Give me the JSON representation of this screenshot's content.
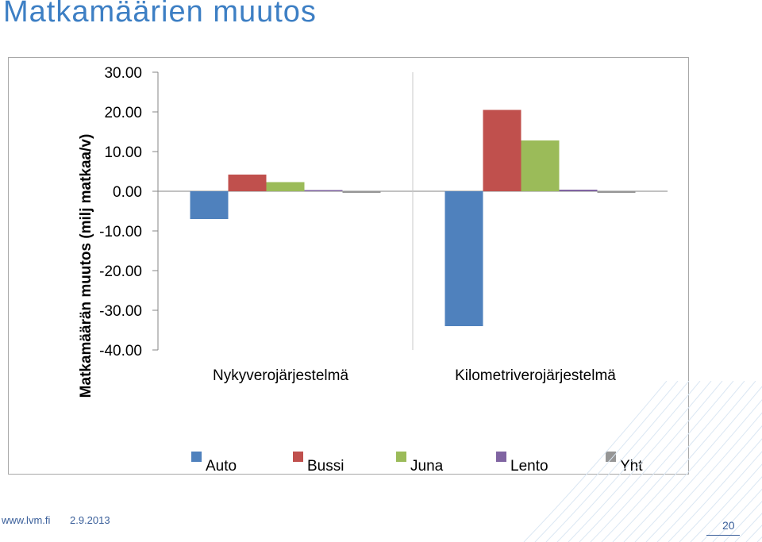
{
  "slide": {
    "title": "Matkamäärien muutos",
    "footer_url": "www.lvm.fi",
    "footer_date": "2.9.2013",
    "page_number": "20"
  },
  "colors": {
    "title": "#3d7fc4",
    "Auto": "#4f81bd",
    "Bussi": "#c0504d",
    "Juna": "#9bbb59",
    "Lento": "#8064a2",
    "Yht": "#969696"
  },
  "chart_data": {
    "type": "bar",
    "title": "",
    "xlabel": "",
    "ylabel": "Matkamäärän muutos (milj matkaa/v)",
    "categories": [
      "Nykyverojärjestelmä",
      "Kilometriverojärjestelmä"
    ],
    "series": [
      {
        "name": "Auto",
        "values": [
          -7.0,
          -34.0
        ]
      },
      {
        "name": "Bussi",
        "values": [
          4.2,
          20.5
        ]
      },
      {
        "name": "Juna",
        "values": [
          2.3,
          12.8
        ]
      },
      {
        "name": "Lento",
        "values": [
          0.3,
          0.4
        ]
      },
      {
        "name": "Yht",
        "values": [
          -0.4,
          -0.4
        ]
      }
    ],
    "ylim": [
      -40,
      30
    ],
    "yticks": [
      30,
      20,
      10,
      0,
      -10,
      -20,
      -30,
      -40
    ],
    "ytick_labels": [
      "30.00",
      "20.00",
      "10.00",
      "0.00",
      "-10.00",
      "-20.00",
      "-30.00",
      "-40.00"
    ],
    "grid": false,
    "legend_position": "bottom"
  }
}
